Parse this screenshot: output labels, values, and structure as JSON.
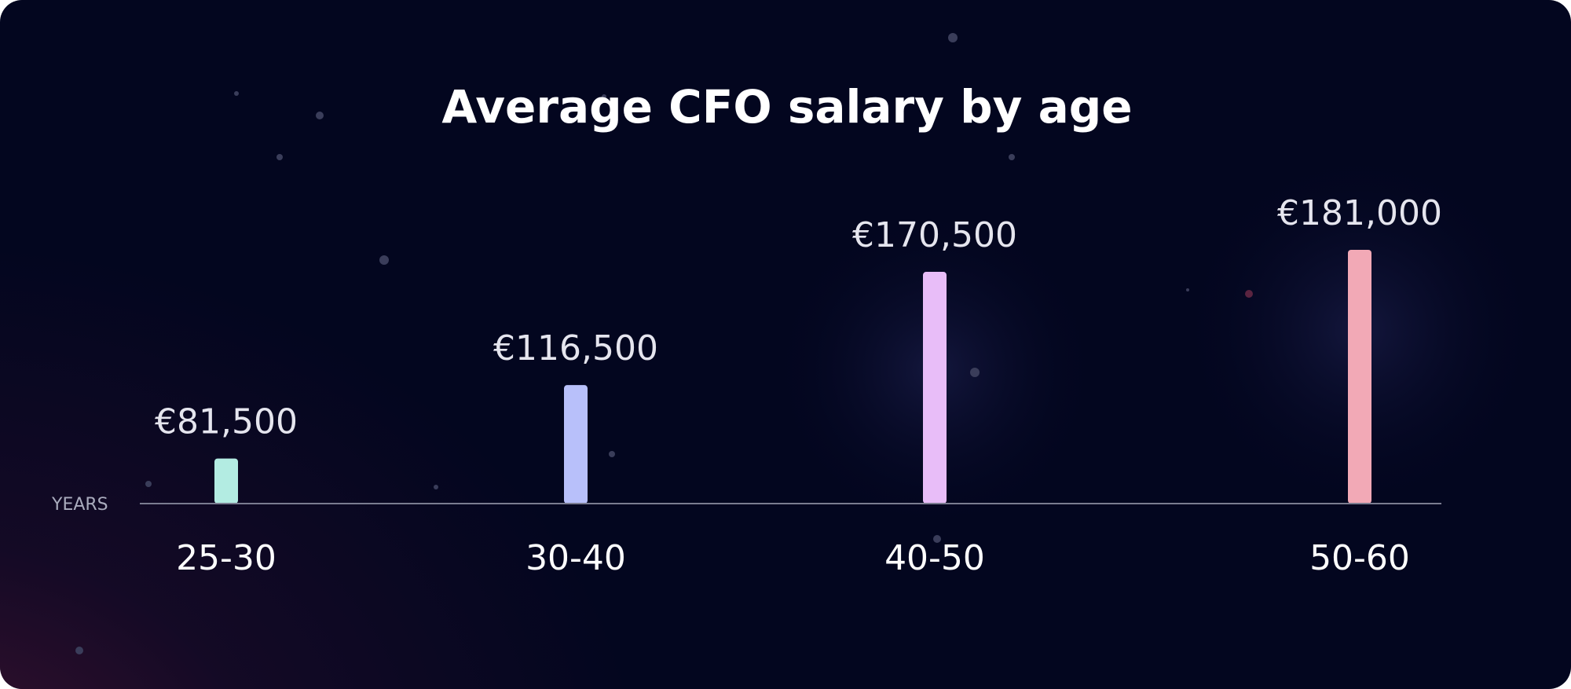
{
  "chart_data": {
    "type": "bar",
    "title": "Average CFO salary by age",
    "xlabel": "YEARS",
    "ylabel": "",
    "categories": [
      "25-30",
      "30-40",
      "40-50",
      "50-60"
    ],
    "values": [
      81500,
      116500,
      170500,
      181000
    ],
    "value_labels": [
      "€81,500",
      "€116,500",
      "€170,500",
      "€181,000"
    ],
    "colors": [
      "#b3ece2",
      "#b8c0fa",
      "#e8bdf8",
      "#f2a9b6"
    ],
    "ylim": [
      60000,
      190000
    ],
    "grid": false,
    "legend": "none"
  }
}
